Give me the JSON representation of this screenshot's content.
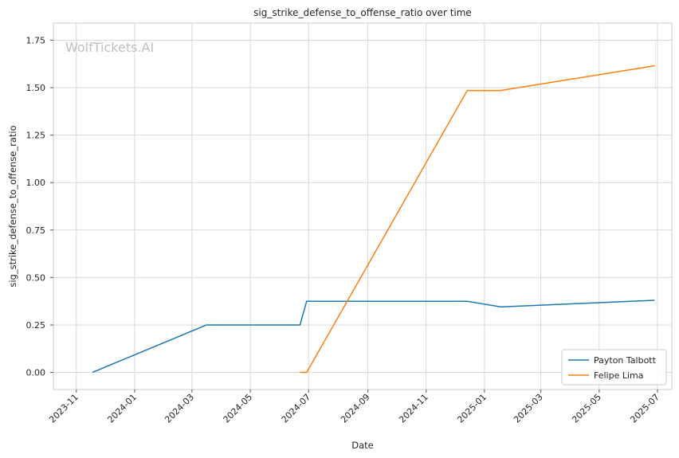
{
  "chart_data": {
    "type": "line",
    "title": "sig_strike_defense_to_offense_ratio over time",
    "xlabel": "Date",
    "ylabel": "sig_strike_defense_to_offense_ratio",
    "watermark": "WolfTickets.AI",
    "x_ticks": [
      "2023-11",
      "2024-01",
      "2024-03",
      "2024-05",
      "2024-07",
      "2024-09",
      "2024-11",
      "2025-01",
      "2025-03",
      "2025-05",
      "2025-07"
    ],
    "y_ticks": [
      "0.00",
      "0.25",
      "0.50",
      "0.75",
      "1.00",
      "1.25",
      "1.50",
      "1.75"
    ],
    "xlim": [
      "2023-10-08",
      "2025-07-16"
    ],
    "ylim": [
      -0.09,
      1.84
    ],
    "grid": true,
    "legend_position": "lower-right",
    "series": [
      {
        "name": "Payton Talbott",
        "color": "#1f77b4",
        "points": [
          {
            "x": "2023-11-18",
            "y": 0.0
          },
          {
            "x": "2024-03-16",
            "y": 0.25
          },
          {
            "x": "2024-06-22",
            "y": 0.25
          },
          {
            "x": "2024-06-29",
            "y": 0.375
          },
          {
            "x": "2024-12-14",
            "y": 0.375
          },
          {
            "x": "2025-01-18",
            "y": 0.345
          },
          {
            "x": "2025-06-28",
            "y": 0.38
          }
        ]
      },
      {
        "name": "Felipe Lima",
        "color": "#ff7f0e",
        "points": [
          {
            "x": "2024-06-22",
            "y": 0.0
          },
          {
            "x": "2024-06-29",
            "y": 0.0
          },
          {
            "x": "2024-12-14",
            "y": 1.485
          },
          {
            "x": "2025-01-18",
            "y": 1.485
          },
          {
            "x": "2025-06-28",
            "y": 1.615
          }
        ]
      }
    ]
  }
}
